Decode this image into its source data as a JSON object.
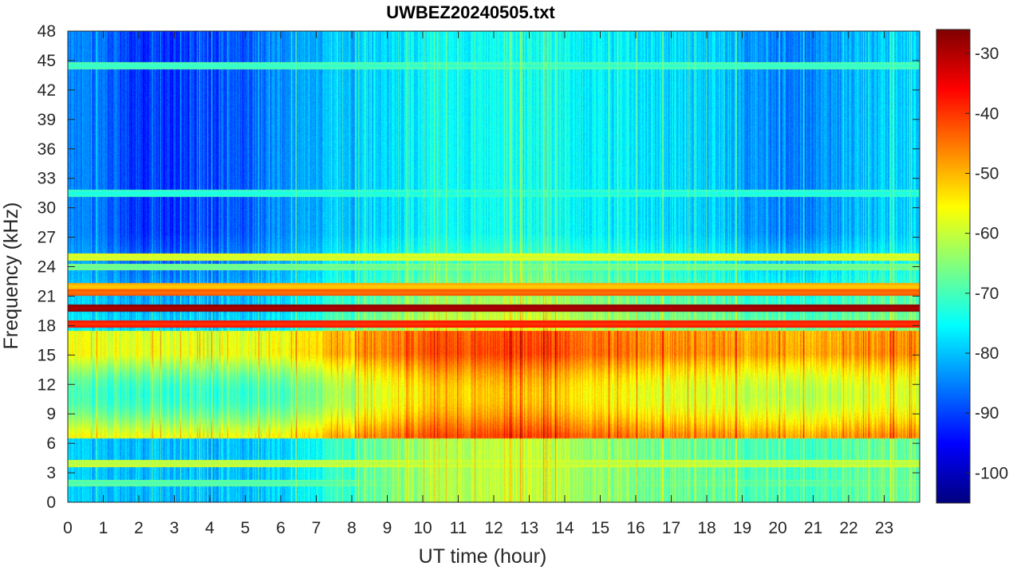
{
  "chart_data": {
    "type": "heatmap",
    "title": "UWBEZ20240505.txt",
    "xlabel": "UT time (hour)",
    "ylabel": "Frequency (kHz)",
    "xlim": [
      0,
      24
    ],
    "ylim": [
      0,
      48
    ],
    "x_ticks": [
      "0",
      "1",
      "2",
      "3",
      "4",
      "5",
      "6",
      "7",
      "8",
      "9",
      "10",
      "11",
      "12",
      "13",
      "14",
      "15",
      "16",
      "17",
      "18",
      "19",
      "20",
      "21",
      "22",
      "23"
    ],
    "y_ticks": [
      "0",
      "3",
      "6",
      "9",
      "12",
      "15",
      "18",
      "21",
      "24",
      "27",
      "30",
      "33",
      "36",
      "39",
      "42",
      "45",
      "48"
    ],
    "colorbar": {
      "ticks": [
        "-30",
        "-40",
        "-50",
        "-60",
        "-70",
        "-80",
        "-90",
        "-100"
      ],
      "range": [
        -105,
        -26
      ],
      "colormap": "jet"
    },
    "grid": false,
    "time_samples_hour": [
      0,
      1,
      2,
      3,
      4,
      5,
      6,
      7,
      8,
      9,
      10,
      11,
      12,
      13,
      14,
      15,
      16,
      17,
      18,
      19,
      20,
      21,
      22,
      23,
      24
    ],
    "high_freq_level_db": [
      -85,
      -86,
      -92,
      -92,
      -90,
      -88,
      -84,
      -82,
      -80,
      -78,
      -76,
      -75,
      -74,
      -74,
      -75,
      -76,
      -77,
      -78,
      -79,
      -82,
      -86,
      -84,
      -82,
      -80,
      -78
    ],
    "low_freq_level_db": [
      -70,
      -71,
      -72,
      -72,
      -72,
      -71,
      -70,
      -66,
      -62,
      -57,
      -54,
      -52,
      -51,
      -51,
      -53,
      -55,
      -57,
      -58,
      -59,
      -60,
      -61,
      -61,
      -60,
      -59,
      -58
    ],
    "bands": [
      {
        "freq_khz": 19.8,
        "level_db": -30
      },
      {
        "freq_khz": 18.2,
        "level_db": -40
      },
      {
        "freq_khz": 21.4,
        "level_db": -45
      },
      {
        "freq_khz": 22.0,
        "level_db": -52
      },
      {
        "freq_khz": 25.0,
        "level_db": -60
      },
      {
        "freq_khz": 24.0,
        "level_db": -68
      },
      {
        "freq_khz": 44.5,
        "level_db": -72
      },
      {
        "freq_khz": 4.0,
        "level_db": -62
      },
      {
        "freq_khz": 2.0,
        "level_db": -70
      },
      {
        "freq_khz": 31.5,
        "level_db": -74
      }
    ]
  }
}
